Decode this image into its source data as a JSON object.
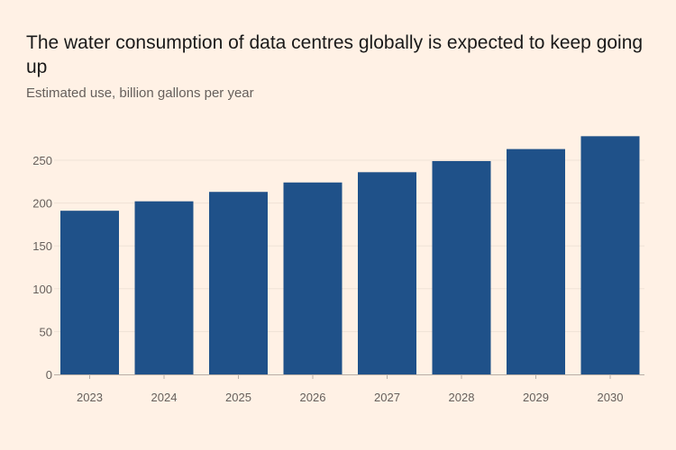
{
  "chart_data": {
    "type": "bar",
    "title": "The water consumption of data centres globally is expected to keep going up",
    "subtitle": "Estimated use, billion gallons per year",
    "xlabel": "",
    "ylabel": "",
    "categories": [
      "2023",
      "2024",
      "2025",
      "2026",
      "2027",
      "2028",
      "2029",
      "2030"
    ],
    "values": [
      191,
      202,
      213,
      224,
      236,
      249,
      263,
      278
    ],
    "ylim": [
      0,
      280
    ],
    "yticks": [
      0,
      50,
      100,
      150,
      200,
      250
    ],
    "grid": true,
    "bar_color": "#1F5189",
    "background": "#FFF1E5"
  }
}
